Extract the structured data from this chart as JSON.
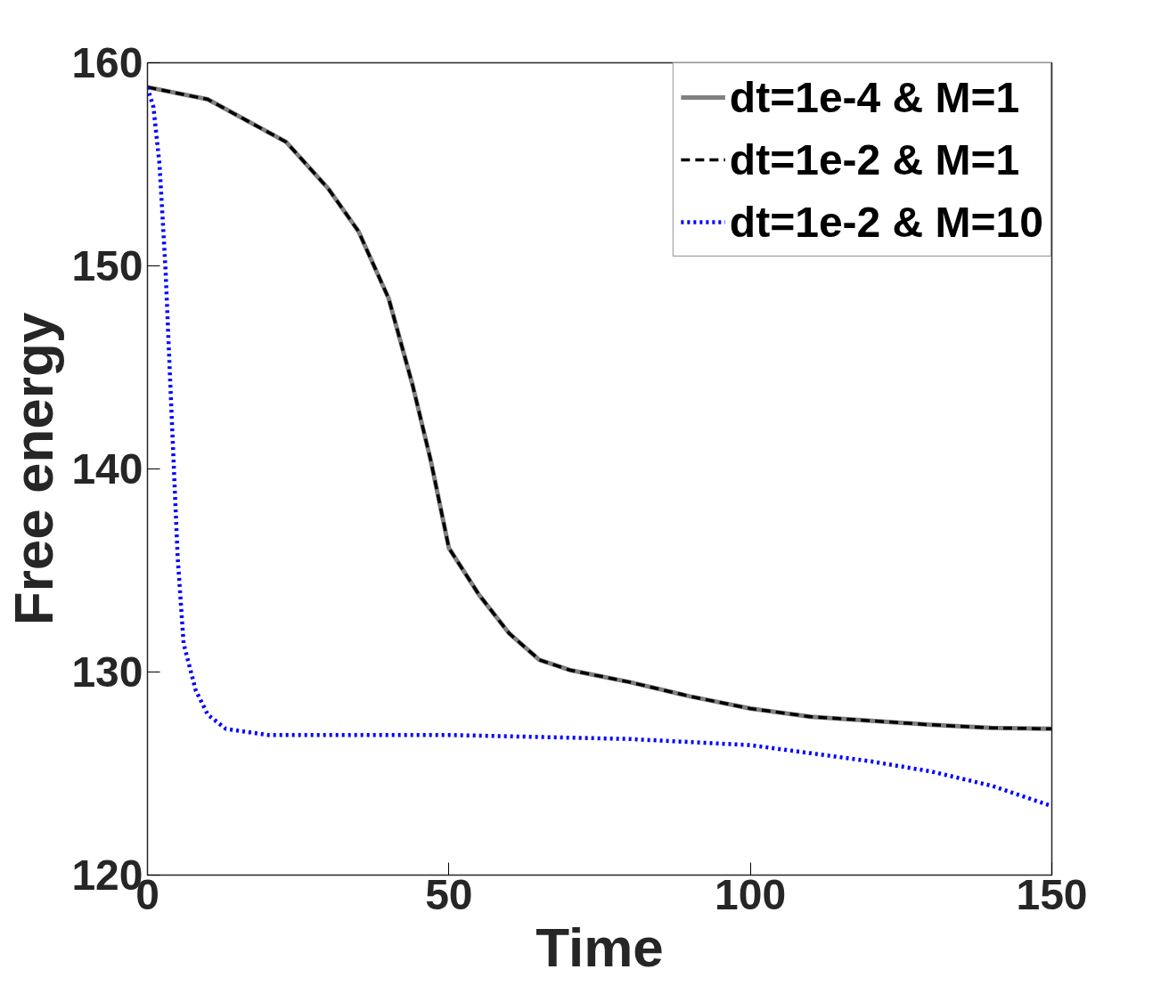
{
  "chart_data": {
    "type": "line",
    "xlabel": "Time",
    "ylabel": "Free energy",
    "xlim": [
      0,
      150
    ],
    "ylim": [
      120,
      160
    ],
    "xticks": [
      0,
      50,
      100,
      150
    ],
    "yticks": [
      120,
      130,
      140,
      150,
      160
    ],
    "grid": false,
    "legend": "top right",
    "series": [
      {
        "name": "dt=1e-4 & M=1",
        "color": "#808080",
        "line_style": "solid",
        "x": [
          0,
          10,
          23,
          30,
          35,
          40,
          44,
          47,
          50,
          55,
          60,
          65,
          70,
          80,
          90,
          100,
          110,
          120,
          130,
          140,
          150
        ],
        "values": [
          158.8,
          158.2,
          156.1,
          153.8,
          151.7,
          148.4,
          144.1,
          140.4,
          136.1,
          133.8,
          131.9,
          130.6,
          130.1,
          129.5,
          128.8,
          128.2,
          127.8,
          127.6,
          127.4,
          127.25,
          127.2
        ]
      },
      {
        "name": "dt=1e-2 & M=1",
        "color": "#000000",
        "line_style": "dashed",
        "x": [
          0,
          10,
          23,
          30,
          35,
          40,
          44,
          47,
          50,
          55,
          60,
          65,
          70,
          80,
          90,
          100,
          110,
          120,
          130,
          140,
          150
        ],
        "values": [
          158.8,
          158.2,
          156.1,
          153.8,
          151.7,
          148.4,
          144.1,
          140.4,
          136.1,
          133.8,
          131.9,
          130.6,
          130.1,
          129.5,
          128.8,
          128.2,
          127.8,
          127.6,
          127.4,
          127.25,
          127.2
        ]
      },
      {
        "name": "dt=1e-2 & M=10",
        "color": "#0000ff",
        "line_style": "dotted",
        "x": [
          0,
          1,
          2,
          3,
          4,
          5,
          6,
          8,
          10,
          13,
          20,
          50,
          80,
          100,
          120,
          130,
          140,
          150
        ],
        "values": [
          158.8,
          157.8,
          155,
          149.8,
          142.7,
          135.7,
          131.4,
          129.1,
          127.9,
          127.2,
          126.9,
          126.9,
          126.7,
          126.4,
          125.6,
          125.1,
          124.4,
          123.4
        ]
      }
    ]
  }
}
